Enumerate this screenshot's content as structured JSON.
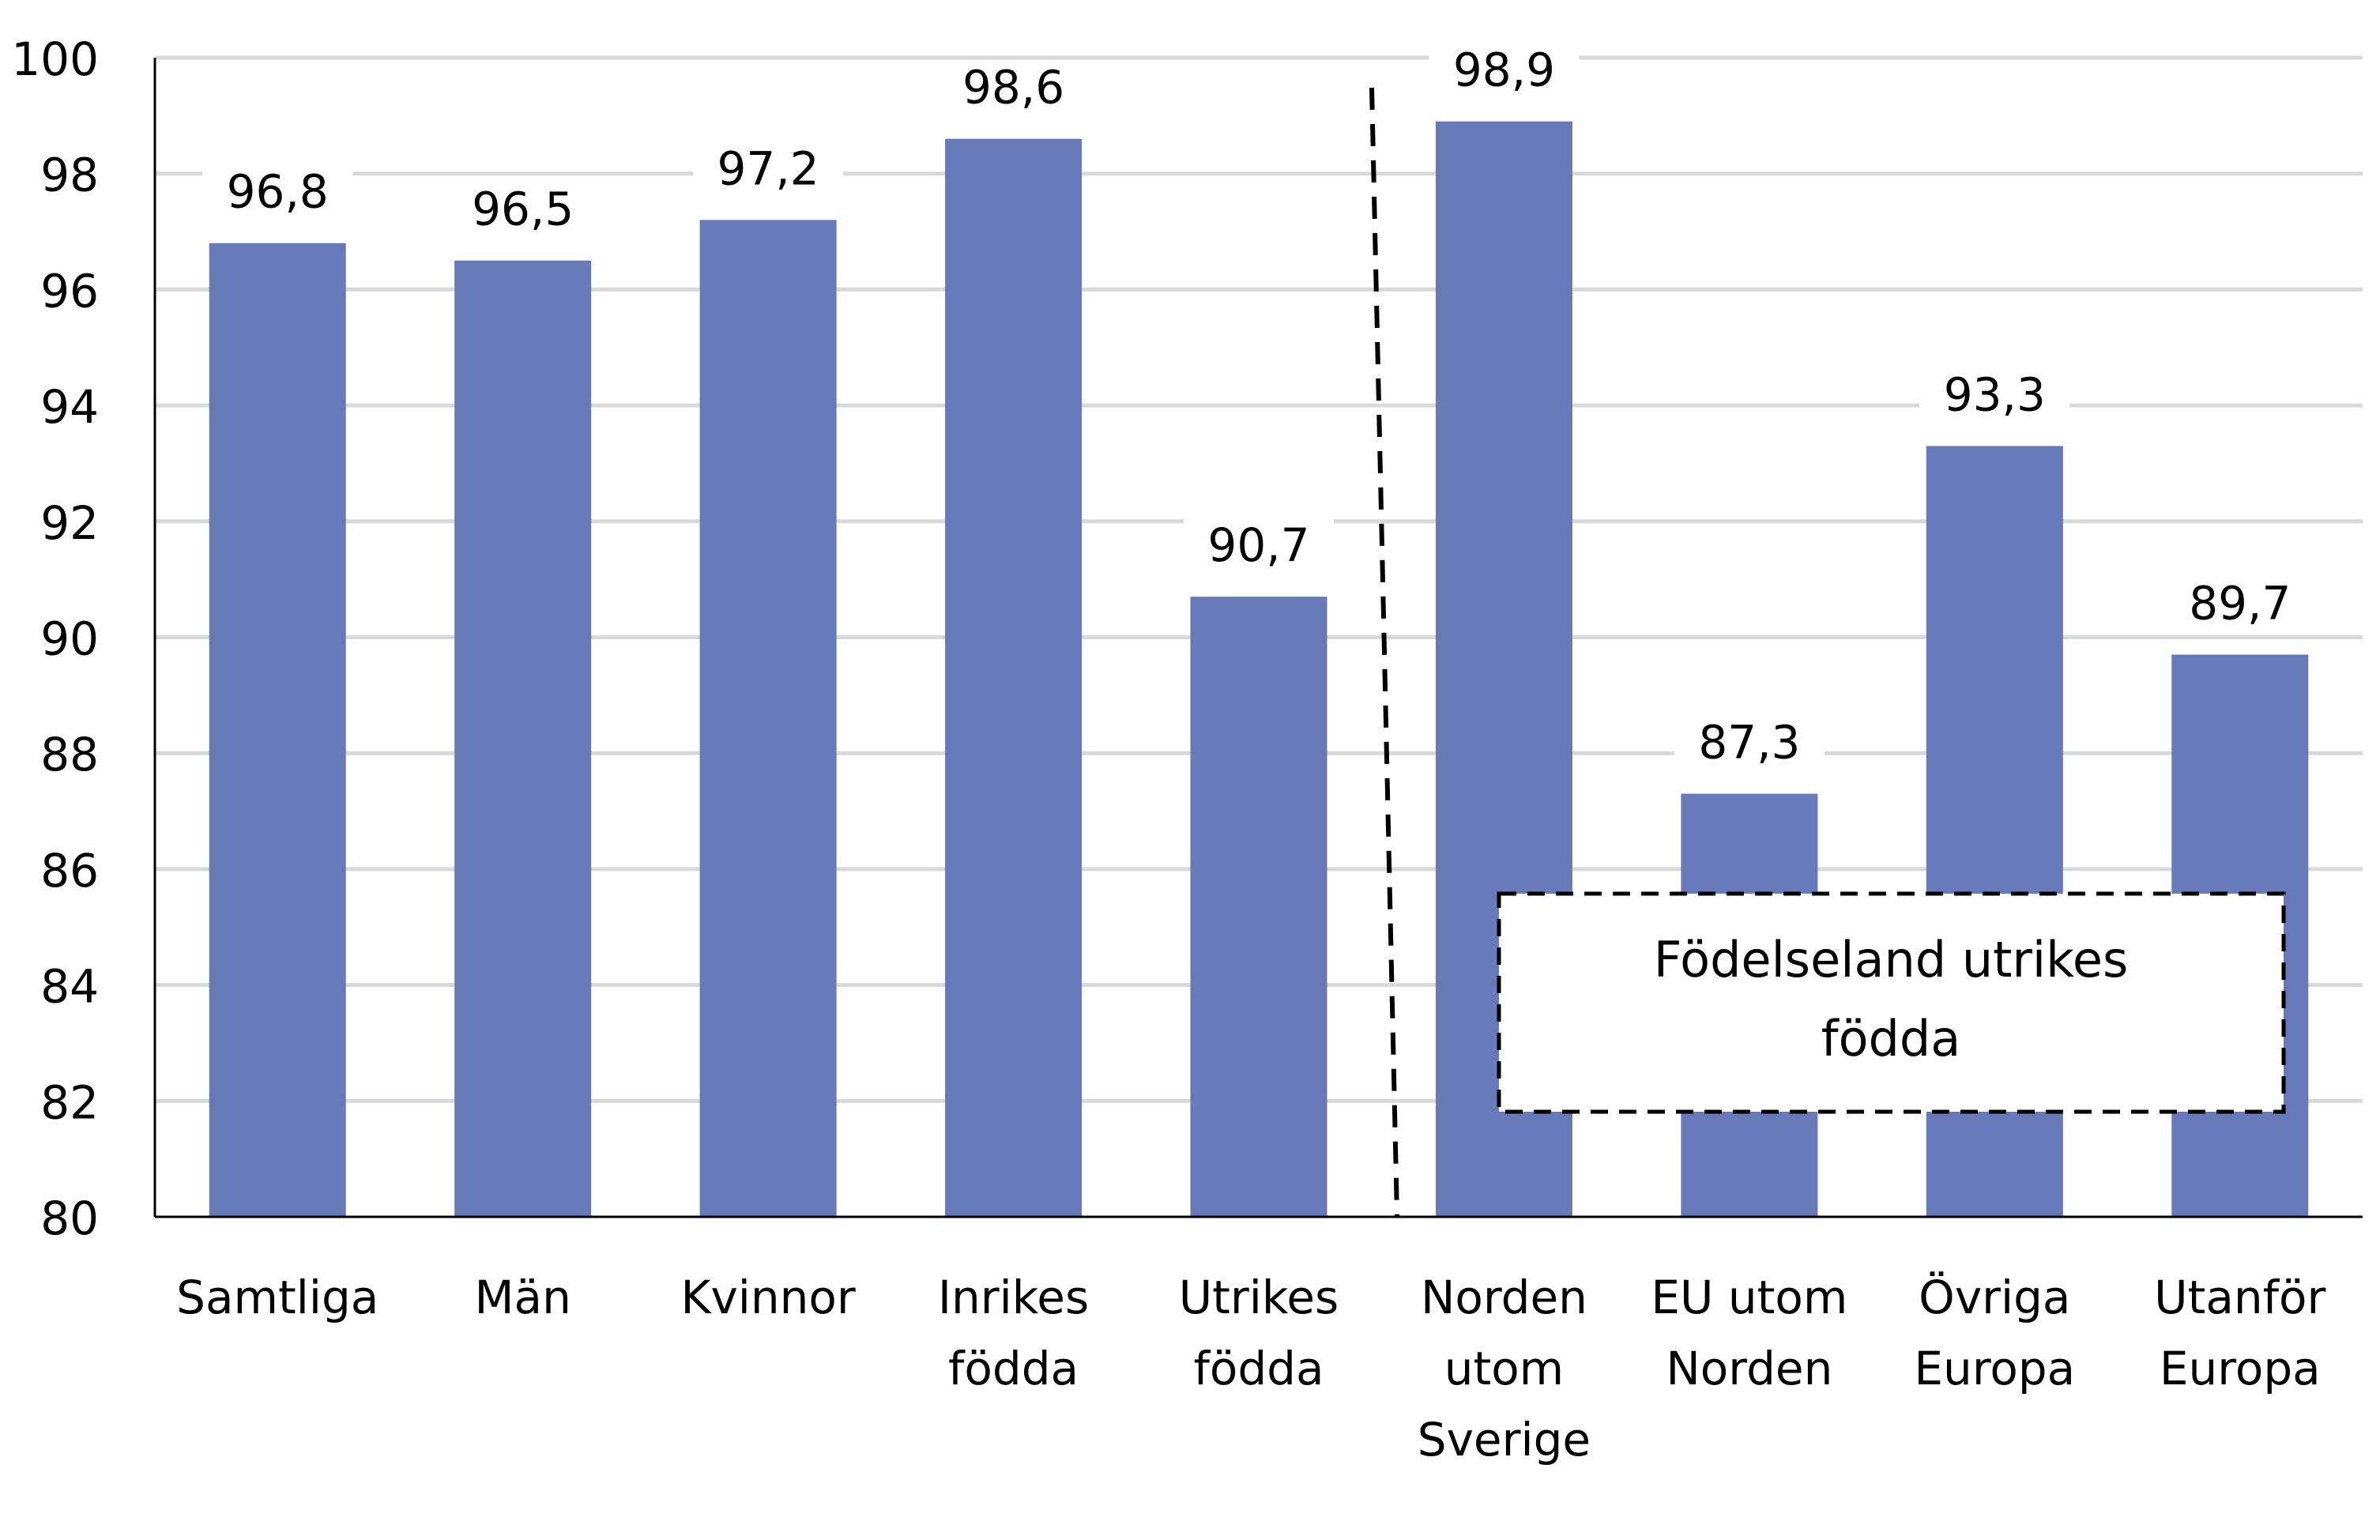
{
  "chart_data": {
    "type": "bar",
    "title": "",
    "xlabel": "",
    "ylabel": "",
    "categories": [
      [
        "Samtliga"
      ],
      [
        "Män"
      ],
      [
        "Kvinnor"
      ],
      [
        "Inrikes",
        "födda"
      ],
      [
        "Utrikes",
        "födda"
      ],
      [
        "Norden",
        "utom",
        "Sverige"
      ],
      [
        "EU utom",
        "Norden"
      ],
      [
        "Övriga",
        "Europa"
      ],
      [
        "Utanför",
        "Europa"
      ]
    ],
    "values": [
      96.8,
      96.5,
      97.2,
      98.6,
      90.7,
      98.9,
      87.3,
      93.3,
      89.7
    ],
    "data_labels": [
      "96,8",
      "96,5",
      "97,2",
      "98,6",
      "90,7",
      "98,9",
      "87,3",
      "93,3",
      "89,7"
    ],
    "ylim": [
      80,
      100
    ],
    "yticks": [
      80,
      82,
      84,
      86,
      88,
      90,
      92,
      94,
      96,
      98,
      100
    ],
    "grid": true,
    "bar_color": "#6779b8",
    "annotation": {
      "text_lines": [
        "Födelseland utrikes",
        "födda"
      ]
    },
    "separator": "dashed line between Utrikes födda and Norden utom Sverige"
  }
}
